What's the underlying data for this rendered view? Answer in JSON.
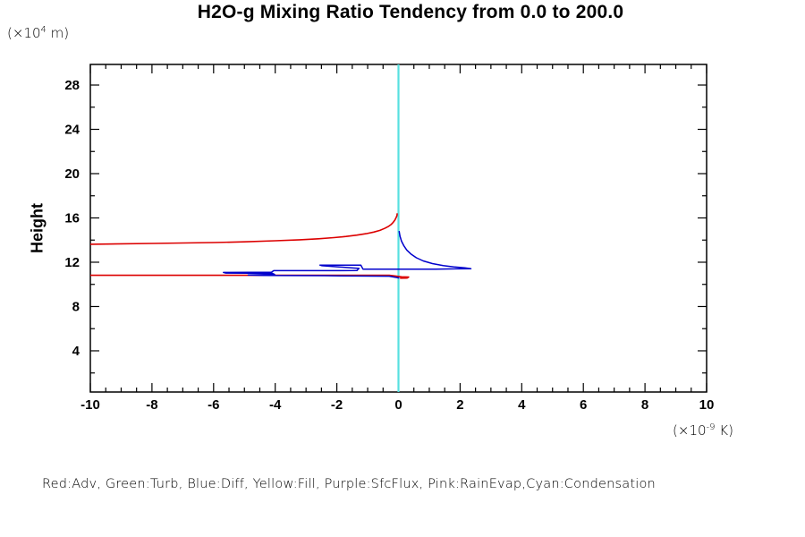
{
  "title": "H2O-g Mixing Ratio Tendency from 0.0 to 200.0",
  "y_axis": {
    "label": "Height",
    "unit_base": "(×10",
    "unit_exp": "4",
    "unit_rest": " m)"
  },
  "x_axis": {
    "unit_base": "(×10",
    "unit_exp": "-9",
    "unit_rest": " K)"
  },
  "legend_note": "Red:Adv, Green:Turb, Blue:Diff, Yellow:Fill, Purple:SfcFlux, Pink:RainEvap,Cyan:Condensation",
  "chart_data": {
    "type": "line",
    "title": "H2O-g Mixing Ratio Tendency from 0.0 to 200.0",
    "xlabel": "(×10^-9 K)",
    "ylabel": "Height (×10^4 m)",
    "xlim": [
      -10,
      10
    ],
    "ylim": [
      0.28,
      29.86
    ],
    "grid": false,
    "x_major_ticks": [
      -10,
      -8,
      -6,
      -4,
      -2,
      0,
      2,
      4,
      6,
      8,
      10
    ],
    "x_tick_labels": [
      "-10",
      "-8",
      "-6",
      "-4",
      "-2",
      "0",
      "2",
      "4",
      "6",
      "8",
      "10"
    ],
    "x_minor_step": 0.5,
    "y_major_ticks": [
      4,
      8,
      12,
      16,
      20,
      24,
      28
    ],
    "y_tick_labels": [
      "4",
      "8",
      "12",
      "16",
      "20",
      "24",
      "28"
    ],
    "y_minor_step": 2,
    "legend_position": "bottom-text",
    "colors": {
      "adv": "#dc0000",
      "turb": "#008800",
      "diff": "#0000cc",
      "fill": "#dddd00",
      "sfcflux": "#880088",
      "rainevap": "#ff88bb",
      "condensation": "#57e0e0"
    },
    "series": [
      {
        "name": "Condensation",
        "color": "#57e0e0",
        "width": 2.2,
        "points": [
          [
            0,
            0.28
          ],
          [
            0,
            29.86
          ]
        ]
      },
      {
        "name": "Adv-upper",
        "color": "#dc0000",
        "width": 1.6,
        "points": [
          [
            -10,
            13.62
          ],
          [
            -8,
            13.7
          ],
          [
            -6,
            13.78
          ],
          [
            -5,
            13.84
          ],
          [
            -4,
            13.94
          ],
          [
            -3.2,
            14.03
          ],
          [
            -2.6,
            14.12
          ],
          [
            -2.1,
            14.22
          ],
          [
            -1.7,
            14.33
          ],
          [
            -1.35,
            14.45
          ],
          [
            -1.05,
            14.58
          ],
          [
            -0.8,
            14.72
          ],
          [
            -0.6,
            14.88
          ],
          [
            -0.45,
            15.05
          ],
          [
            -0.33,
            15.22
          ],
          [
            -0.24,
            15.4
          ],
          [
            -0.17,
            15.6
          ],
          [
            -0.12,
            15.8
          ],
          [
            -0.08,
            16.0
          ],
          [
            -0.05,
            16.2
          ],
          [
            -0.04,
            16.42
          ]
        ]
      },
      {
        "name": "Adv-lower",
        "color": "#dc0000",
        "width": 1.6,
        "points": [
          [
            -10,
            10.82
          ],
          [
            -0.3,
            10.82
          ],
          [
            -0.12,
            10.76
          ],
          [
            0.1,
            10.68
          ],
          [
            0.33,
            10.66
          ],
          [
            0.28,
            10.57
          ],
          [
            0.05,
            10.56
          ]
        ]
      },
      {
        "name": "Diff",
        "color": "#0000cc",
        "width": 1.5,
        "points": [
          [
            0.02,
            14.82
          ],
          [
            0.05,
            14.35
          ],
          [
            0.1,
            13.9
          ],
          [
            0.17,
            13.5
          ],
          [
            0.27,
            13.1
          ],
          [
            0.4,
            12.75
          ],
          [
            0.58,
            12.4
          ],
          [
            0.8,
            12.12
          ],
          [
            1.1,
            11.88
          ],
          [
            1.45,
            11.7
          ],
          [
            1.8,
            11.58
          ],
          [
            2.15,
            11.5
          ],
          [
            2.35,
            11.42
          ],
          [
            1.2,
            11.38
          ],
          [
            -1.15,
            11.37
          ],
          [
            -1.22,
            11.73
          ],
          [
            -2.55,
            11.74
          ],
          [
            -2.48,
            11.68
          ],
          [
            -1.28,
            11.44
          ],
          [
            -1.35,
            11.25
          ],
          [
            -4.05,
            11.24
          ],
          [
            -4.12,
            11.1
          ],
          [
            -5.68,
            11.08
          ],
          [
            -5.6,
            11.02
          ],
          [
            -4.1,
            11.0
          ],
          [
            -4.02,
            10.9
          ],
          [
            -4.88,
            10.85
          ],
          [
            -4.35,
            10.8
          ],
          [
            -2.4,
            10.79
          ],
          [
            -1.9,
            10.76
          ],
          [
            -0.3,
            10.74
          ],
          [
            0.03,
            10.58
          ]
        ]
      }
    ]
  }
}
